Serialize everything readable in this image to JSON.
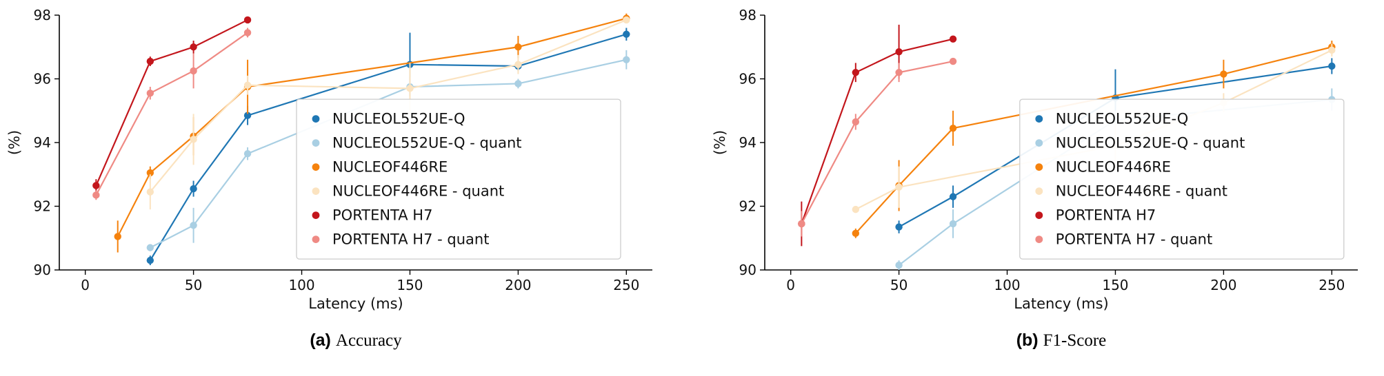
{
  "colors": {
    "blue": "#1f77b4",
    "blue_quant": "#a9cfe3",
    "orange": "#f5820d",
    "orange_quant": "#fbe3c0",
    "red": "#c3161c",
    "red_quant": "#ef8a84"
  },
  "chart_data": [
    {
      "type": "line",
      "caption_prefix": "(a)",
      "caption": "Accuracy",
      "xlabel": "Latency (ms)",
      "ylabel": "(%)",
      "xlim": [
        -12,
        262
      ],
      "ylim": [
        90,
        98
      ],
      "xticks": [
        0,
        50,
        100,
        150,
        200,
        250
      ],
      "yticks": [
        90,
        92,
        94,
        96,
        98
      ],
      "grid": false,
      "legend_position": "center-right",
      "legend_frac": [
        0.4,
        0.33
      ],
      "series": [
        {
          "name": "NUCLEOL552UE-Q",
          "color": "blue",
          "points": [
            [
              30,
              90.3,
              0.15
            ],
            [
              50,
              92.55,
              0.25
            ],
            [
              75,
              94.85,
              0.3
            ],
            [
              150,
              96.45,
              1.0
            ],
            [
              200,
              96.4,
              0.15
            ],
            [
              250,
              97.4,
              0.2
            ]
          ]
        },
        {
          "name": "NUCLEOL552UE-Q - quant",
          "color": "blue_quant",
          "points": [
            [
              30,
              90.7,
              0.1
            ],
            [
              50,
              91.4,
              0.55
            ],
            [
              75,
              93.65,
              0.2
            ],
            [
              150,
              95.75,
              0.3
            ],
            [
              200,
              95.85,
              0.15
            ],
            [
              250,
              96.6,
              0.3
            ]
          ]
        },
        {
          "name": "NUCLEOF446RE",
          "color": "orange",
          "points": [
            [
              15,
              91.05,
              0.5
            ],
            [
              30,
              93.05,
              0.2
            ],
            [
              50,
              94.2,
              0.6
            ],
            [
              75,
              95.75,
              0.85
            ],
            [
              200,
              97.0,
              0.35
            ],
            [
              250,
              97.9,
              0.15
            ]
          ]
        },
        {
          "name": "NUCLEOF446RE - quant",
          "color": "orange_quant",
          "points": [
            [
              30,
              92.45,
              0.55
            ],
            [
              50,
              94.1,
              0.8
            ],
            [
              75,
              95.8,
              0.3
            ],
            [
              150,
              95.7,
              0.8
            ],
            [
              200,
              96.45,
              0.3
            ],
            [
              250,
              97.85,
              0.1
            ]
          ]
        },
        {
          "name": "PORTENTA H7",
          "color": "red",
          "points": [
            [
              5,
              92.65,
              0.2
            ],
            [
              30,
              96.55,
              0.15
            ],
            [
              50,
              97.0,
              0.2
            ],
            [
              75,
              97.85,
              0.1
            ]
          ]
        },
        {
          "name": "PORTENTA H7 - quant",
          "color": "red_quant",
          "points": [
            [
              5,
              92.35,
              0.15
            ],
            [
              30,
              95.55,
              0.2
            ],
            [
              50,
              96.25,
              0.55
            ],
            [
              75,
              97.45,
              0.15
            ]
          ]
        }
      ]
    },
    {
      "type": "line",
      "caption_prefix": "(b)",
      "caption": "F1-Score",
      "xlabel": "Latency (ms)",
      "ylabel": "(%)",
      "xlim": [
        -12,
        262
      ],
      "ylim": [
        90,
        98
      ],
      "xticks": [
        0,
        50,
        100,
        150,
        200,
        250
      ],
      "yticks": [
        90,
        92,
        94,
        96,
        98
      ],
      "grid": false,
      "legend_position": "center-right",
      "legend_frac": [
        0.43,
        0.33
      ],
      "series": [
        {
          "name": "NUCLEOL552UE-Q",
          "color": "blue",
          "points": [
            [
              50,
              91.35,
              0.2
            ],
            [
              75,
              92.3,
              0.35
            ],
            [
              150,
              95.4,
              0.9
            ],
            [
              250,
              96.4,
              0.25
            ]
          ]
        },
        {
          "name": "NUCLEOL552UE-Q - quant",
          "color": "blue_quant",
          "points": [
            [
              50,
              90.15,
              0.15
            ],
            [
              75,
              91.45,
              0.45
            ],
            [
              150,
              94.7,
              0.3
            ],
            [
              250,
              95.35,
              0.35
            ]
          ]
        },
        {
          "name": "NUCLEOF446RE",
          "color": "orange",
          "points": [
            [
              30,
              91.15,
              0.15
            ],
            [
              50,
              92.65,
              0.8
            ],
            [
              75,
              94.45,
              0.55
            ],
            [
              200,
              96.15,
              0.45
            ],
            [
              250,
              97.0,
              0.2
            ]
          ]
        },
        {
          "name": "NUCLEOF446RE - quant",
          "color": "orange_quant",
          "points": [
            [
              30,
              91.9,
              0.1
            ],
            [
              50,
              92.6,
              0.65
            ],
            [
              150,
              93.9,
              0.7
            ],
            [
              200,
              95.25,
              0.3
            ],
            [
              250,
              96.9,
              0.2
            ]
          ]
        },
        {
          "name": "PORTENTA H7",
          "color": "red",
          "points": [
            [
              5,
              91.45,
              0.7
            ],
            [
              30,
              96.2,
              0.3
            ],
            [
              50,
              96.85,
              0.85
            ],
            [
              75,
              97.25,
              0.1
            ]
          ]
        },
        {
          "name": "PORTENTA H7 - quant",
          "color": "red_quant",
          "points": [
            [
              5,
              91.45,
              0.4
            ],
            [
              30,
              94.65,
              0.25
            ],
            [
              50,
              96.2,
              0.3
            ],
            [
              75,
              96.55,
              0.1
            ]
          ]
        }
      ]
    }
  ]
}
